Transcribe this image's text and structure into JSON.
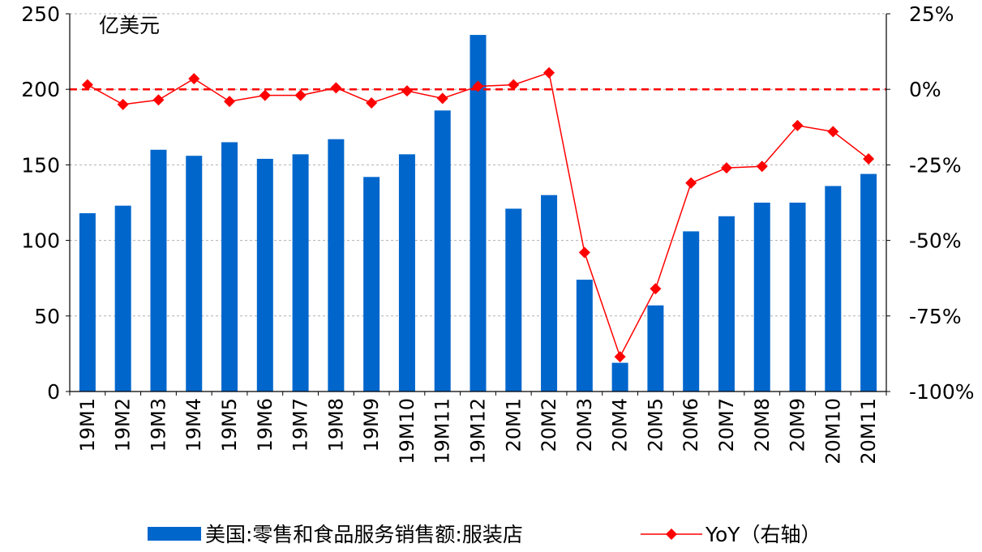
{
  "chart_data": {
    "type": "bar",
    "unit_label": "亿美元",
    "categories": [
      "19M1",
      "19M2",
      "19M3",
      "19M4",
      "19M5",
      "19M6",
      "19M7",
      "19M8",
      "19M9",
      "19M10",
      "19M11",
      "19M12",
      "20M1",
      "20M2",
      "20M3",
      "20M4",
      "20M5",
      "20M6",
      "20M7",
      "20M8",
      "20M9",
      "20M10",
      "20M11"
    ],
    "series": [
      {
        "name": "美国:零售和食品服务销售额:服装店",
        "type": "bar",
        "axis": "left",
        "color": "#0066CC",
        "values": [
          118,
          123,
          160,
          156,
          165,
          154,
          157,
          167,
          142,
          157,
          186,
          236,
          121,
          130,
          74,
          19,
          57,
          106,
          116,
          125,
          125,
          136,
          144
        ]
      },
      {
        "name": "YoY（右轴）",
        "type": "line",
        "axis": "right",
        "color": "#FF0000",
        "marker": "diamond",
        "values": [
          1.5,
          -5,
          -3.5,
          3.5,
          -4,
          -2,
          -2,
          0.5,
          -4.5,
          -0.5,
          -3,
          1,
          1.5,
          5.5,
          -54,
          -88.5,
          -66,
          -31,
          -26,
          -25.5,
          -12,
          -14,
          -23
        ]
      }
    ],
    "y_left": {
      "ylim": [
        0,
        250
      ],
      "ticks": [
        0,
        50,
        100,
        150,
        200,
        250
      ],
      "tick_labels": [
        "0",
        "50",
        "100",
        "150",
        "200",
        "250"
      ]
    },
    "y_right": {
      "ylim": [
        -100,
        25
      ],
      "ticks": [
        -100,
        -75,
        -50,
        -25,
        0,
        25
      ],
      "tick_labels": [
        "-100%",
        "-75%",
        "-50%",
        "-25%",
        "0%",
        "25%"
      ]
    },
    "reference_line": {
      "axis": "right",
      "value": 0,
      "style": "dashed",
      "color": "#FF0000"
    },
    "grid": true,
    "legend_position": "bottom"
  }
}
